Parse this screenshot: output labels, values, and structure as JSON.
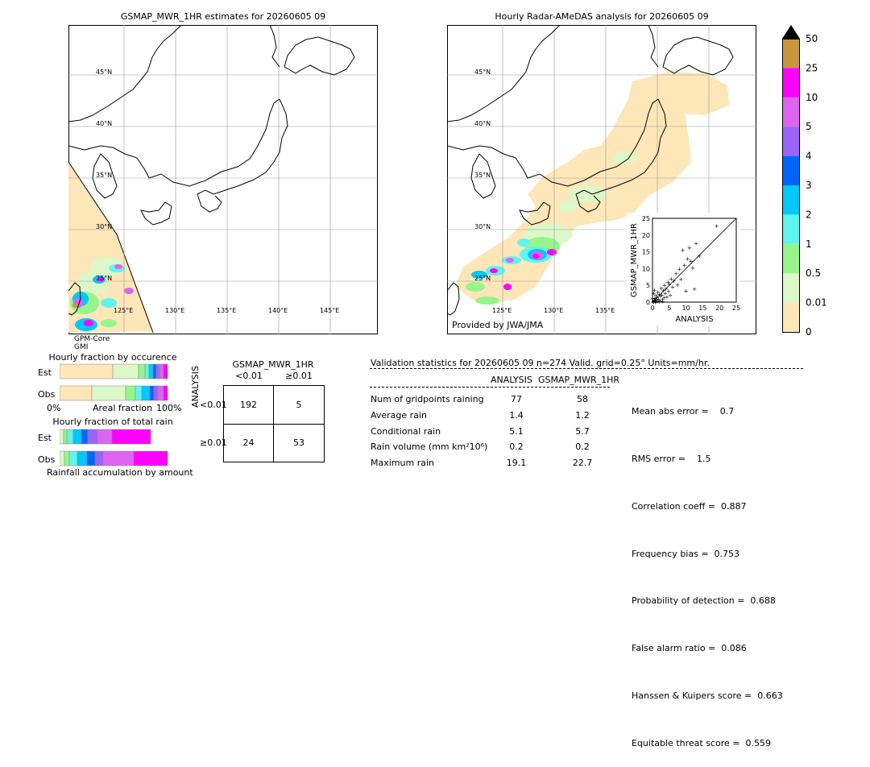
{
  "left_map": {
    "title": "GSMAP_MWR_1HR estimates for 20260605 09",
    "lat_labels": [
      "45°N",
      "40°N",
      "35°N",
      "30°N",
      "25°N"
    ],
    "lon_labels": [
      "125°E",
      "130°E",
      "135°E",
      "140°E",
      "145°E"
    ],
    "sensor_line1": "GPM-Core",
    "sensor_line2": "GMI"
  },
  "right_map": {
    "title": "Hourly Radar-AMeDAS analysis for 20260605 09",
    "lat_labels": [
      "45°N",
      "40°N",
      "35°N",
      "30°N",
      "25°N"
    ],
    "lon_labels": [
      "125°E",
      "130°E",
      "135°E"
    ],
    "credit": "Provided by JWA/JMA"
  },
  "colorbar": {
    "levels": [
      "0",
      "0.01",
      "0.5",
      "1",
      "2",
      "3",
      "4",
      "5",
      "10",
      "25",
      "50"
    ],
    "colors": [
      "#fde6b8",
      "#dcf7c8",
      "#96f58a",
      "#5ef5f0",
      "#00c8f8",
      "#0064ff",
      "#9a64f8",
      "#dc64f0",
      "#ff00ff",
      "#c8963c"
    ],
    "extend_color": "#000000"
  },
  "occurrence": {
    "title": "Hourly fraction by occurence",
    "row_est": "Est",
    "row_obs": "Obs",
    "axis_left": "0%",
    "axis_mid": "Areal fraction",
    "axis_right": "100%"
  },
  "total_rain": {
    "title": "Hourly fraction of total rain",
    "row_est": "Est",
    "row_obs": "Obs",
    "axis_label": "Rainfall accumulation by amount"
  },
  "contingency": {
    "title": "GSMAP_MWR_1HR",
    "col1": "<0.01",
    "col2": "≥0.01",
    "row_axis": "ANALYSIS",
    "row1": "<0.01",
    "row2": "≥0.01",
    "cells": [
      "192",
      "5",
      "24",
      "53"
    ]
  },
  "validation": {
    "header": "Validation statistics for 20260605 09  n=274 Valid. grid=0.25° Units=mm/hr.",
    "col_analysis": "ANALYSIS",
    "col_gsmap": "GSMAP_MWR_1HR",
    "rows": [
      {
        "label": "Num of gridpoints raining",
        "a": "77",
        "g": "58"
      },
      {
        "label": "Average rain",
        "a": "1.4",
        "g": "1.2"
      },
      {
        "label": "Conditional rain",
        "a": "5.1",
        "g": "5.7"
      },
      {
        "label": "Rain volume (mm km²10⁶)",
        "a": "0.2",
        "g": "0.2"
      },
      {
        "label": "Maximum rain",
        "a": "19.1",
        "g": "22.7"
      }
    ],
    "scores": [
      "Mean abs error =    0.7",
      "RMS error =    1.5",
      "Correlation coeff =  0.887",
      "Frequency bias =  0.753",
      "Probability of detection =  0.688",
      "False alarm ratio =  0.086",
      "Hanssen & Kuipers score =  0.663",
      "Equitable threat score =  0.559"
    ]
  },
  "chart_data": {
    "type": "scatter",
    "xlabel": "ANALYSIS",
    "ylabel": "GSMAP_MWR_1HR",
    "xlim": [
      0,
      25
    ],
    "ylim": [
      0,
      25
    ],
    "ticks": [
      "0",
      "5",
      "10",
      "15",
      "20",
      "25"
    ],
    "points": [
      [
        0.2,
        0.3
      ],
      [
        0.4,
        0.1
      ],
      [
        0.5,
        0.6
      ],
      [
        0.7,
        1.2
      ],
      [
        0.9,
        0.4
      ],
      [
        1.0,
        2.0
      ],
      [
        1.2,
        0.8
      ],
      [
        1.3,
        1.5
      ],
      [
        1.5,
        0.2
      ],
      [
        1.6,
        3.0
      ],
      [
        1.8,
        1.0
      ],
      [
        2.0,
        2.4
      ],
      [
        2.2,
        0.5
      ],
      [
        2.4,
        1.8
      ],
      [
        2.6,
        4.2
      ],
      [
        2.8,
        2.2
      ],
      [
        3.0,
        0.9
      ],
      [
        3.2,
        3.5
      ],
      [
        3.4,
        1.3
      ],
      [
        3.6,
        5.0
      ],
      [
        3.8,
        2.6
      ],
      [
        4.0,
        4.0
      ],
      [
        4.3,
        1.6
      ],
      [
        4.6,
        6.0
      ],
      [
        4.8,
        3.2
      ],
      [
        5.0,
        5.4
      ],
      [
        5.3,
        2.0
      ],
      [
        5.6,
        7.0
      ],
      [
        6.0,
        4.6
      ],
      [
        6.4,
        6.4
      ],
      [
        7.0,
        8.5
      ],
      [
        7.5,
        5.2
      ],
      [
        8.0,
        9.8
      ],
      [
        8.5,
        6.8
      ],
      [
        9.0,
        15.5
      ],
      [
        9.5,
        11.0
      ],
      [
        10.0,
        3.4
      ],
      [
        10.5,
        13.0
      ],
      [
        11.0,
        16.2
      ],
      [
        11.5,
        12.2
      ],
      [
        12.0,
        10.2
      ],
      [
        12.5,
        4.0
      ],
      [
        13.0,
        17.5
      ],
      [
        14.0,
        13.8
      ],
      [
        19.1,
        22.7
      ],
      [
        0.1,
        1.1
      ],
      [
        0.3,
        2.6
      ],
      [
        0.6,
        3.6
      ],
      [
        1.1,
        0.2
      ],
      [
        2.0,
        0.1
      ],
      [
        3.0,
        0.2
      ],
      [
        0.2,
        0.0
      ],
      [
        0.8,
        0.0
      ]
    ]
  }
}
